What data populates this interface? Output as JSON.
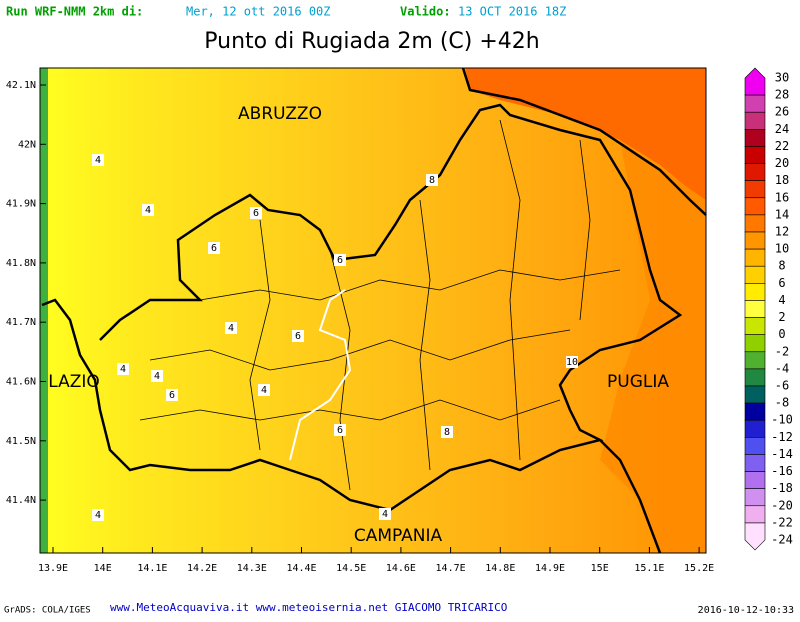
{
  "header": {
    "run_label": "Run WRF-NMM 2km di:",
    "run_date": "Mer, 12 ott 2016 00Z",
    "valid_label": "Valido:",
    "valid_date": "13 OCT 2016 18Z"
  },
  "title": "Punto di Rugiada 2m (C) +42h",
  "map": {
    "regions": [
      "ABRUZZO",
      "LAZIO",
      "PUGLIA",
      "CAMPANIA"
    ],
    "contour_labels": [
      "4",
      "4",
      "8",
      "6",
      "6",
      "6",
      "4",
      "6",
      "4",
      "4",
      "6",
      "4",
      "6",
      "8",
      "10",
      "4",
      "4"
    ],
    "lat_labels": [
      "42.1N",
      "42N",
      "41.9N",
      "41.8N",
      "41.7N",
      "41.6N",
      "41.5N",
      "41.4N"
    ],
    "lon_labels": [
      "13.9E",
      "14E",
      "14.1E",
      "14.2E",
      "14.3E",
      "14.4E",
      "14.5E",
      "14.6E",
      "14.7E",
      "14.8E",
      "14.9E",
      "15E",
      "15.1E",
      "15.2E"
    ]
  },
  "colorbar": {
    "labels": [
      "30",
      "28",
      "26",
      "24",
      "22",
      "20",
      "18",
      "16",
      "14",
      "12",
      "10",
      "8",
      "6",
      "4",
      "2",
      "0",
      "-2",
      "-4",
      "-6",
      "-8",
      "-10",
      "-12",
      "-14",
      "-16",
      "-18",
      "-20",
      "-22",
      "-24"
    ]
  },
  "footer": {
    "credits": "GrADS: COLA/IGES",
    "sites": "www.MeteoAcquaviva.it www.meteoisernia.net GIACOMO TRICARICO",
    "timestamp": "2016-10-12-10:33"
  }
}
